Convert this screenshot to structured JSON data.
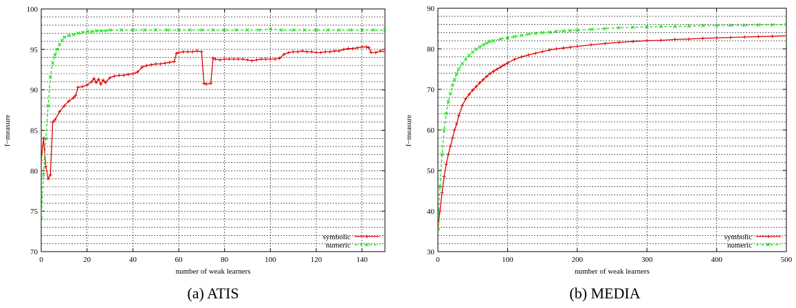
{
  "colors": {
    "symbolic": "#dd0000",
    "numeric": "#11dd11",
    "grid": "#000000"
  },
  "chart_data": [
    {
      "type": "line",
      "caption": "(a) ATIS",
      "xlabel": "number of weak learners",
      "ylabel": "f−measure",
      "xlim": [
        0,
        150
      ],
      "ylim": [
        70,
        100
      ],
      "xticks": [
        0,
        20,
        40,
        60,
        80,
        100,
        120,
        140
      ],
      "yticks": [
        70,
        75,
        80,
        85,
        90,
        95,
        100
      ],
      "grid": true,
      "legend_position": "bottom-right",
      "series": [
        {
          "name": "symbolic",
          "x": [
            0,
            1,
            2,
            3,
            4,
            5,
            6,
            8,
            10,
            12,
            14,
            15,
            16,
            18,
            20,
            22,
            23,
            24,
            25,
            26,
            27,
            28,
            30,
            32,
            34,
            36,
            38,
            40,
            42,
            44,
            46,
            48,
            50,
            52,
            54,
            56,
            58,
            59,
            60,
            62,
            64,
            66,
            68,
            70,
            71,
            72,
            74,
            75,
            76,
            78,
            80,
            82,
            84,
            86,
            88,
            90,
            92,
            94,
            96,
            98,
            100,
            102,
            104,
            106,
            108,
            110,
            112,
            114,
            116,
            118,
            120,
            122,
            124,
            126,
            128,
            130,
            132,
            134,
            136,
            138,
            140,
            142,
            143,
            144,
            146,
            148,
            150
          ],
          "y": [
            81.3,
            84.0,
            80.5,
            79.0,
            79.5,
            86.0,
            86.3,
            87.3,
            88.0,
            88.6,
            89.0,
            89.3,
            90.3,
            90.4,
            90.6,
            91.0,
            91.4,
            90.9,
            91.3,
            90.7,
            91.2,
            90.9,
            91.5,
            91.7,
            91.8,
            91.8,
            91.9,
            92.0,
            92.2,
            92.8,
            93.0,
            93.1,
            93.2,
            93.2,
            93.3,
            93.4,
            93.5,
            94.5,
            94.6,
            94.7,
            94.7,
            94.7,
            94.8,
            94.7,
            90.8,
            90.7,
            90.8,
            93.9,
            93.8,
            93.7,
            93.8,
            93.8,
            93.8,
            93.8,
            93.8,
            93.7,
            93.6,
            93.7,
            93.8,
            93.8,
            93.8,
            93.8,
            93.9,
            94.4,
            94.6,
            94.7,
            94.7,
            94.8,
            94.7,
            94.7,
            94.6,
            94.6,
            94.7,
            94.7,
            94.8,
            94.8,
            95.0,
            95.1,
            95.1,
            95.2,
            95.3,
            95.3,
            95.2,
            94.6,
            94.6,
            94.8,
            94.7
          ]
        },
        {
          "name": "numeric",
          "x": [
            0,
            1,
            2,
            3,
            4,
            5,
            6,
            7,
            8,
            9,
            10,
            12,
            14,
            16,
            18,
            20,
            22,
            24,
            26,
            28,
            30,
            35,
            40,
            45,
            50,
            55,
            60,
            65,
            70,
            75,
            80,
            85,
            90,
            95,
            100,
            105,
            110,
            115,
            120,
            125,
            130,
            135,
            140,
            145,
            150
          ],
          "y": [
            74.2,
            79.5,
            84.0,
            88.0,
            91.6,
            93.3,
            94.3,
            95.0,
            95.6,
            96.1,
            96.5,
            96.7,
            96.8,
            97.0,
            97.1,
            97.2,
            97.2,
            97.3,
            97.3,
            97.3,
            97.4,
            97.4,
            97.4,
            97.4,
            97.4,
            97.4,
            97.4,
            97.4,
            97.4,
            97.4,
            97.4,
            97.4,
            97.4,
            97.4,
            97.5,
            97.4,
            97.4,
            97.4,
            97.4,
            97.4,
            97.4,
            97.4,
            97.4,
            97.4,
            97.4
          ]
        }
      ]
    },
    {
      "type": "line",
      "caption": "(b) MEDIA",
      "xlabel": "number of weak learners",
      "ylabel": "f−measure",
      "xlim": [
        0,
        500
      ],
      "ylim": [
        30,
        90
      ],
      "xticks": [
        0,
        100,
        200,
        300,
        400,
        500
      ],
      "yticks": [
        30,
        40,
        50,
        60,
        70,
        80,
        90
      ],
      "grid": true,
      "legend_position": "bottom-right",
      "series": [
        {
          "name": "symbolic",
          "x": [
            0,
            3,
            6,
            9,
            12,
            15,
            18,
            21,
            24,
            27,
            30,
            35,
            40,
            45,
            50,
            55,
            60,
            65,
            70,
            75,
            80,
            85,
            90,
            95,
            100,
            110,
            120,
            130,
            140,
            150,
            160,
            170,
            180,
            190,
            200,
            220,
            240,
            260,
            280,
            300,
            320,
            340,
            360,
            380,
            400,
            420,
            440,
            460,
            480,
            500
          ],
          "y": [
            35.5,
            40.0,
            44.5,
            48.5,
            51.5,
            54.0,
            56.0,
            58.0,
            60.0,
            61.5,
            63.5,
            66.0,
            67.7,
            68.8,
            69.8,
            70.7,
            71.6,
            72.4,
            73.2,
            73.9,
            74.5,
            75.0,
            75.5,
            76.0,
            76.5,
            77.4,
            78.0,
            78.5,
            78.9,
            79.3,
            79.7,
            80.0,
            80.2,
            80.4,
            80.6,
            81.0,
            81.3,
            81.6,
            81.8,
            82.0,
            82.1,
            82.3,
            82.4,
            82.6,
            82.7,
            82.8,
            82.9,
            83.0,
            83.1,
            83.2
          ]
        },
        {
          "name": "numeric",
          "x": [
            0,
            3,
            6,
            9,
            12,
            15,
            18,
            21,
            24,
            27,
            30,
            35,
            40,
            45,
            50,
            55,
            60,
            65,
            70,
            75,
            80,
            90,
            100,
            110,
            120,
            130,
            140,
            150,
            160,
            170,
            180,
            190,
            200,
            220,
            240,
            260,
            280,
            300,
            320,
            340,
            360,
            380,
            400,
            420,
            440,
            460,
            480,
            500
          ],
          "y": [
            35.5,
            46.0,
            54.0,
            60.0,
            64.0,
            67.0,
            69.0,
            71.0,
            72.5,
            73.8,
            75.0,
            76.3,
            77.4,
            78.4,
            79.2,
            79.9,
            80.5,
            81.0,
            81.4,
            81.8,
            82.0,
            82.4,
            82.7,
            83.0,
            83.3,
            83.6,
            83.8,
            84.0,
            84.1,
            84.3,
            84.4,
            84.5,
            84.6,
            84.8,
            85.0,
            85.2,
            85.3,
            85.4,
            85.5,
            85.5,
            85.6,
            85.7,
            85.7,
            85.8,
            85.8,
            85.9,
            85.9,
            86.0
          ]
        }
      ]
    }
  ]
}
